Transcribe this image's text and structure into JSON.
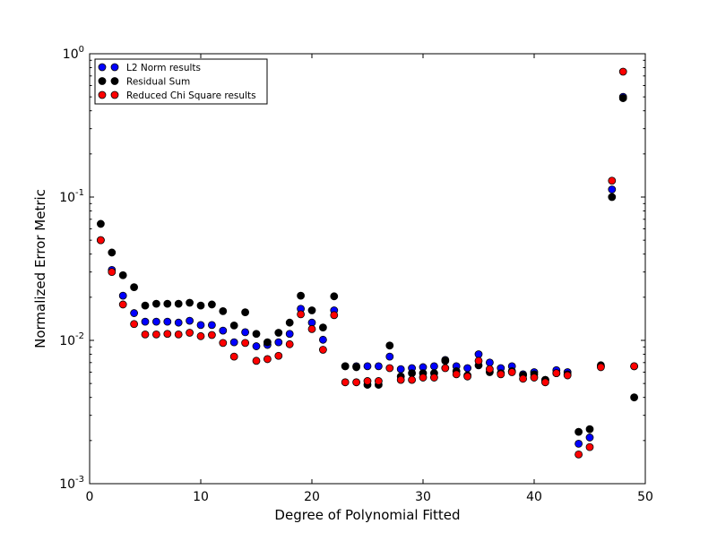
{
  "chart_data": {
    "type": "scatter",
    "title": "",
    "xlabel": "Degree of Polynomial Fitted",
    "ylabel": "Normalized Error Metric",
    "xlim": [
      0,
      50
    ],
    "ylim": [
      0.001,
      1
    ],
    "yscale": "log",
    "grid": false,
    "legend_position": "top-left",
    "x_ticks": [
      {
        "value": 0,
        "label": "0"
      },
      {
        "value": 10,
        "label": "10"
      },
      {
        "value": 20,
        "label": "20"
      },
      {
        "value": 30,
        "label": "30"
      },
      {
        "value": 40,
        "label": "40"
      },
      {
        "value": 50,
        "label": "50"
      }
    ],
    "y_ticks": [
      {
        "value": 0.001,
        "base": "10",
        "exp": "-3"
      },
      {
        "value": 0.01,
        "base": "10",
        "exp": "-2"
      },
      {
        "value": 0.1,
        "base": "10",
        "exp": "-1"
      },
      {
        "value": 1,
        "base": "10",
        "exp": "0"
      }
    ],
    "x": [
      1,
      2,
      3,
      4,
      5,
      6,
      7,
      8,
      9,
      10,
      11,
      12,
      13,
      14,
      15,
      16,
      17,
      18,
      19,
      20,
      21,
      22,
      23,
      24,
      25,
      26,
      27,
      28,
      29,
      30,
      31,
      32,
      33,
      34,
      35,
      36,
      37,
      38,
      39,
      40,
      41,
      42,
      43,
      44,
      45,
      46,
      47,
      48,
      49
    ],
    "series": [
      {
        "name": "L2 Norm results",
        "color": "#0000ff",
        "values": [
          0.05,
          0.031,
          0.0205,
          0.0155,
          0.0135,
          0.0135,
          0.0135,
          0.0133,
          0.0137,
          0.0128,
          0.0128,
          0.0117,
          0.0097,
          0.0114,
          0.0091,
          0.0093,
          0.0097,
          0.0111,
          0.0166,
          0.0133,
          0.0101,
          0.0162,
          0.0066,
          0.0066,
          0.0066,
          0.0066,
          0.0077,
          0.0063,
          0.0064,
          0.0065,
          0.0066,
          0.0073,
          0.0066,
          0.0064,
          0.008,
          0.007,
          0.0064,
          0.0066,
          0.0058,
          0.006,
          0.0053,
          0.0062,
          0.006,
          0.0019,
          0.0021,
          0.0066,
          0.113,
          0.5,
          0.0066
        ]
      },
      {
        "name": "Residual Sum",
        "color": "#000000",
        "values": [
          0.065,
          0.041,
          0.0285,
          0.0235,
          0.0175,
          0.018,
          0.018,
          0.018,
          0.0183,
          0.0175,
          0.0178,
          0.016,
          0.0127,
          0.0157,
          0.0111,
          0.0097,
          0.0113,
          0.0133,
          0.0205,
          0.0162,
          0.0123,
          0.0203,
          0.0066,
          0.0065,
          0.0049,
          0.0049,
          0.0092,
          0.0056,
          0.0059,
          0.0059,
          0.0059,
          0.0072,
          0.0061,
          0.0057,
          0.0067,
          0.006,
          0.0059,
          0.0061,
          0.0057,
          0.0058,
          0.0053,
          0.0059,
          0.0058,
          0.0023,
          0.0024,
          0.0067,
          0.1,
          0.49,
          0.004
        ]
      },
      {
        "name": "Reduced Chi Square results",
        "color": "#ff0000",
        "values": [
          0.05,
          0.03,
          0.0178,
          0.013,
          0.011,
          0.011,
          0.0111,
          0.011,
          0.0113,
          0.0107,
          0.0109,
          0.0096,
          0.0077,
          0.0096,
          0.0072,
          0.0074,
          0.0078,
          0.0094,
          0.0152,
          0.012,
          0.0086,
          0.015,
          0.0051,
          0.0051,
          0.0052,
          0.0052,
          0.0064,
          0.0053,
          0.0053,
          0.0055,
          0.0055,
          0.0064,
          0.0058,
          0.0056,
          0.0072,
          0.0063,
          0.0058,
          0.006,
          0.0054,
          0.0055,
          0.0051,
          0.0059,
          0.0057,
          0.0016,
          0.0018,
          0.0065,
          0.13,
          0.75,
          0.0066
        ]
      }
    ]
  }
}
